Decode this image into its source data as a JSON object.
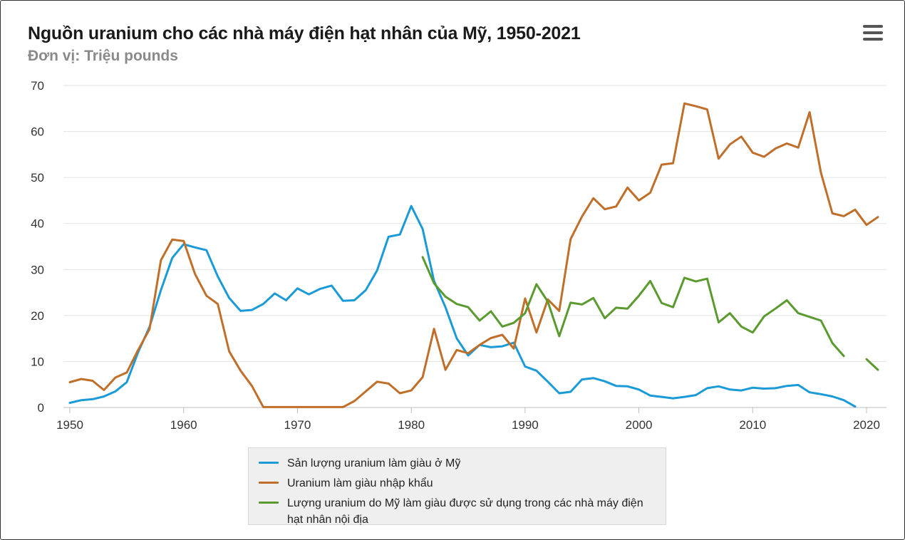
{
  "header": {
    "title": "Nguồn uranium cho các nhà máy điện hạt nhân của Mỹ, 1950-2021",
    "subtitle": "Đơn vị: Triệu pounds",
    "menu_icon": "hamburger-menu-icon"
  },
  "chart_data": {
    "type": "line",
    "title": "Nguồn uranium cho các nhà máy điện hạt nhân của Mỹ, 1950-2021",
    "subtitle": "Đơn vị: Triệu pounds",
    "xlabel": "",
    "ylabel": "",
    "xlim": [
      1950,
      2021
    ],
    "ylim": [
      0,
      70
    ],
    "y_ticks": [
      0,
      10,
      20,
      30,
      40,
      50,
      60,
      70
    ],
    "x_ticks": [
      1950,
      1960,
      1970,
      1980,
      1990,
      2000,
      2010,
      2020
    ],
    "grid": true,
    "legend_position": "bottom-center",
    "x": [
      1950,
      1951,
      1952,
      1953,
      1954,
      1955,
      1956,
      1957,
      1958,
      1959,
      1960,
      1961,
      1962,
      1963,
      1964,
      1965,
      1966,
      1967,
      1968,
      1969,
      1970,
      1971,
      1972,
      1973,
      1974,
      1975,
      1976,
      1977,
      1978,
      1979,
      1980,
      1981,
      1982,
      1983,
      1984,
      1985,
      1986,
      1987,
      1988,
      1989,
      1990,
      1991,
      1992,
      1993,
      1994,
      1995,
      1996,
      1997,
      1998,
      1999,
      2000,
      2001,
      2002,
      2003,
      2004,
      2005,
      2006,
      2007,
      2008,
      2009,
      2010,
      2011,
      2012,
      2013,
      2014,
      2015,
      2016,
      2017,
      2018,
      2019,
      2020,
      2021
    ],
    "series": [
      {
        "name": "Sản lượng uranium làm giàu ở Mỹ",
        "color": "#1a9ad6",
        "values": [
          1.0,
          1.6,
          1.8,
          2.4,
          3.5,
          5.5,
          12.0,
          17.5,
          25.5,
          32.5,
          35.5,
          34.8,
          34.2,
          28.5,
          23.8,
          21.0,
          21.2,
          22.5,
          24.8,
          23.3,
          25.9,
          24.6,
          25.8,
          26.5,
          23.2,
          23.3,
          25.5,
          29.8,
          37.1,
          37.6,
          43.8,
          38.8,
          27.5,
          21.8,
          15.0,
          11.3,
          13.6,
          13.1,
          13.3,
          14.1,
          8.9,
          8.0,
          5.6,
          3.1,
          3.4,
          6.1,
          6.4,
          5.7,
          4.7,
          4.6,
          3.9,
          2.6,
          2.3,
          2.0,
          2.3,
          2.7,
          4.2,
          4.6,
          3.9,
          3.7,
          4.3,
          4.1,
          4.2,
          4.7,
          4.9,
          3.3,
          2.9,
          2.4,
          1.6,
          0.2,
          null,
          null
        ]
      },
      {
        "name": "Uranium làm giàu nhập khẩu",
        "color": "#c06f2a",
        "values": [
          5.5,
          6.2,
          5.8,
          3.8,
          6.5,
          7.6,
          12.5,
          17.0,
          32.0,
          36.5,
          36.2,
          29.0,
          24.3,
          22.5,
          12.2,
          8.0,
          4.7,
          0.1,
          0.1,
          0.1,
          0.1,
          0.1,
          0.1,
          0.1,
          0.1,
          1.4,
          3.5,
          5.6,
          5.2,
          3.1,
          3.7,
          6.6,
          17.1,
          8.2,
          12.5,
          11.8,
          13.6,
          15.1,
          15.8,
          12.8,
          23.7,
          16.3,
          23.5,
          21.0,
          36.6,
          41.5,
          45.5,
          43.1,
          43.7,
          47.8,
          45.0,
          46.7,
          52.8,
          53.1,
          66.1,
          65.5,
          64.8,
          54.1,
          57.2,
          58.9,
          55.4,
          54.5,
          56.3,
          57.4,
          56.5,
          64.2,
          51.0,
          42.2,
          41.6,
          43.0,
          39.7,
          41.4
        ]
      },
      {
        "name": "Lượng uranium do Mỹ làm giàu được sử dụng trong các nhà máy điện hạt nhân nội địa",
        "color": "#5a9a2e",
        "values": [
          null,
          null,
          null,
          null,
          null,
          null,
          null,
          null,
          null,
          null,
          null,
          null,
          null,
          null,
          null,
          null,
          null,
          null,
          null,
          null,
          null,
          null,
          null,
          null,
          null,
          null,
          null,
          null,
          null,
          null,
          null,
          32.7,
          27.0,
          24.1,
          22.5,
          21.8,
          18.9,
          20.9,
          17.6,
          18.4,
          20.5,
          26.8,
          23.0,
          15.5,
          22.8,
          22.4,
          23.8,
          19.4,
          21.7,
          21.5,
          24.3,
          27.5,
          22.7,
          21.8,
          28.2,
          27.4,
          28.0,
          18.5,
          20.5,
          17.6,
          16.3,
          19.8,
          21.5,
          23.3,
          20.5,
          19.7,
          18.9,
          14.0,
          11.2,
          null,
          10.5,
          8.2
        ]
      }
    ]
  },
  "legend": {
    "items": [
      {
        "label": "Sản lượng uranium làm giàu ở Mỹ",
        "color": "#1a9ad6"
      },
      {
        "label": "Uranium làm giàu nhập khẩu",
        "color": "#c06f2a"
      },
      {
        "label": "Lượng uranium do Mỹ làm giàu được sử dụng trong các nhà máy điện hạt nhân nội địa",
        "color": "#5a9a2e"
      }
    ]
  }
}
